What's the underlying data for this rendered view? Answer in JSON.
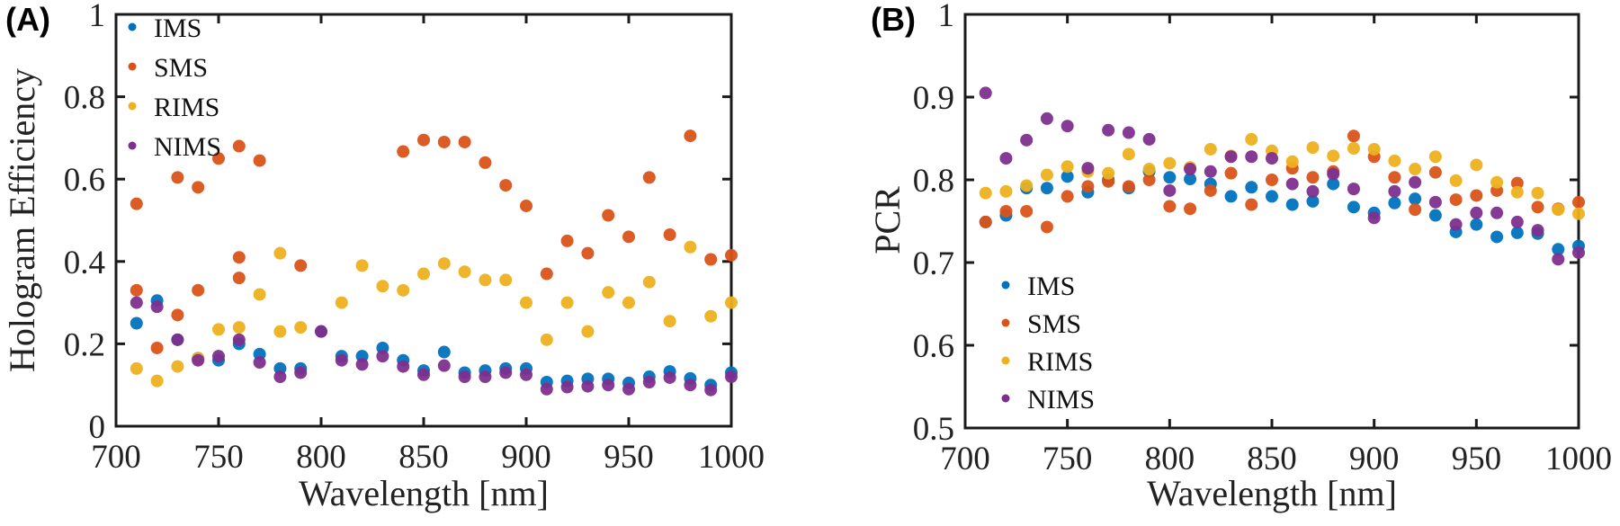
{
  "chart_data": [
    {
      "type": "scatter",
      "panel_label": "(A)",
      "title": "",
      "xlabel": "Wavelength [nm]",
      "ylabel": "Hologram Efficiency",
      "xlim": [
        700,
        1000
      ],
      "ylim": [
        0,
        1
      ],
      "xticks": [
        700,
        750,
        800,
        850,
        900,
        950,
        1000
      ],
      "xtick_labels": [
        "700",
        "750",
        "800",
        "850",
        "900",
        "950",
        "1000"
      ],
      "yticks": [
        0,
        0.2,
        0.4,
        0.6,
        0.8,
        1
      ],
      "ytick_labels": [
        "0",
        "0.2",
        "0.4",
        "0.6",
        "0.8",
        "1"
      ],
      "grid": false,
      "legend_position": "top-left",
      "x": [
        710,
        720,
        730,
        740,
        750,
        760,
        770,
        780,
        790,
        800,
        810,
        820,
        830,
        840,
        850,
        860,
        870,
        880,
        890,
        900,
        910,
        920,
        930,
        940,
        950,
        960,
        970,
        980,
        990,
        1000
      ],
      "series": [
        {
          "name": "IMS",
          "color": "#0072BD",
          "values": [
            0.25,
            0.305,
            0.21,
            0.165,
            0.16,
            0.2,
            0.175,
            0.14,
            0.14,
            0.23,
            0.17,
            0.17,
            0.19,
            0.16,
            0.135,
            0.18,
            0.13,
            0.135,
            0.14,
            0.14,
            0.107,
            0.11,
            0.115,
            0.115,
            0.105,
            0.12,
            0.133,
            0.116,
            0.1,
            0.13
          ]
        },
        {
          "name": "SMS",
          "color": "#D95319",
          "values": [
            0.54,
            0.19,
            0.604,
            0.58,
            0.65,
            0.68,
            0.645,
            null,
            0.39,
            null,
            null,
            null,
            null,
            0.667,
            0.695,
            0.69,
            0.69,
            0.64,
            0.585,
            0.535,
            0.37,
            0.45,
            0.42,
            0.512,
            0.46,
            0.604,
            0.465,
            0.705,
            0.405,
            0.415
          ],
          "extra_points": [
            [
              710,
              0.33
            ],
            [
              730,
              0.27
            ],
            [
              740,
              0.33
            ],
            [
              760,
              0.36
            ],
            [
              760,
              0.41
            ]
          ]
        },
        {
          "name": "RIMS",
          "color": "#EDB120",
          "values": [
            0.14,
            0.11,
            0.145,
            0.165,
            0.235,
            0.24,
            0.32,
            0.42,
            0.24,
            null,
            0.3,
            0.39,
            0.34,
            0.33,
            0.37,
            0.395,
            0.375,
            0.355,
            0.355,
            0.3,
            0.21,
            0.3,
            0.23,
            0.325,
            0.3,
            0.35,
            0.255,
            0.435,
            0.267,
            0.3
          ],
          "extra_points": [
            [
              780,
              0.23
            ]
          ]
        },
        {
          "name": "NIMS",
          "color": "#7E2F8E",
          "values": [
            0.3,
            0.29,
            0.21,
            0.16,
            0.17,
            0.21,
            0.155,
            0.12,
            0.13,
            0.23,
            0.16,
            0.15,
            0.17,
            0.145,
            0.125,
            0.147,
            0.12,
            0.12,
            0.13,
            0.125,
            0.09,
            0.095,
            0.097,
            0.1,
            0.09,
            0.107,
            0.118,
            0.1,
            0.088,
            0.12
          ]
        }
      ]
    },
    {
      "type": "scatter",
      "panel_label": "(B)",
      "title": "",
      "xlabel": "Wavelength [nm]",
      "ylabel": "PCR",
      "xlim": [
        700,
        1000
      ],
      "ylim": [
        0.5,
        1
      ],
      "xticks": [
        700,
        750,
        800,
        850,
        900,
        950,
        1000
      ],
      "xtick_labels": [
        "700",
        "750",
        "800",
        "850",
        "900",
        "950",
        "1000"
      ],
      "yticks": [
        0.5,
        0.6,
        0.7,
        0.8,
        0.9,
        1
      ],
      "ytick_labels": [
        "0.5",
        "0.6",
        "0.7",
        "0.8",
        "0.9",
        "1"
      ],
      "grid": false,
      "legend_position": "bottom-left",
      "x": [
        710,
        720,
        730,
        740,
        750,
        760,
        770,
        780,
        790,
        800,
        810,
        820,
        830,
        840,
        850,
        860,
        870,
        880,
        890,
        900,
        910,
        920,
        930,
        940,
        950,
        960,
        970,
        980,
        990,
        1000
      ],
      "series": [
        {
          "name": "IMS",
          "color": "#0072BD",
          "values": [
            0.749,
            0.757,
            0.79,
            0.79,
            0.804,
            0.785,
            0.8,
            0.79,
            0.81,
            0.803,
            0.801,
            0.795,
            0.78,
            0.791,
            0.78,
            0.77,
            0.774,
            0.795,
            0.767,
            0.76,
            0.772,
            0.777,
            0.757,
            0.737,
            0.746,
            0.731,
            0.736,
            0.735,
            0.716,
            0.72
          ]
        },
        {
          "name": "SMS",
          "color": "#D95319",
          "values": [
            0.749,
            0.762,
            0.762,
            0.743,
            0.78,
            0.792,
            0.798,
            0.792,
            0.8,
            0.768,
            0.765,
            0.787,
            0.808,
            0.77,
            0.8,
            0.814,
            0.803,
            0.81,
            0.853,
            0.828,
            0.803,
            0.764,
            0.809,
            0.776,
            0.781,
            0.787,
            0.796,
            0.767,
            0.765,
            0.773
          ]
        },
        {
          "name": "RIMS",
          "color": "#EDB120",
          "values": [
            0.784,
            0.786,
            0.793,
            0.806,
            0.816,
            0.81,
            0.808,
            0.831,
            0.813,
            0.82,
            0.815,
            0.837,
            0.829,
            0.849,
            0.835,
            0.822,
            0.839,
            0.829,
            0.838,
            0.837,
            0.823,
            0.813,
            0.828,
            0.799,
            0.818,
            0.797,
            0.785,
            0.784,
            0.764,
            0.759
          ]
        },
        {
          "name": "NIMS",
          "color": "#7E2F8E",
          "values": [
            0.905,
            0.826,
            0.848,
            0.874,
            0.865,
            0.814,
            0.86,
            0.857,
            0.849,
            0.787,
            0.813,
            0.81,
            0.828,
            0.828,
            0.826,
            0.795,
            0.786,
            0.807,
            0.789,
            0.754,
            0.786,
            0.797,
            0.773,
            0.746,
            0.76,
            0.76,
            0.749,
            0.739,
            0.704,
            0.712
          ]
        }
      ]
    }
  ]
}
